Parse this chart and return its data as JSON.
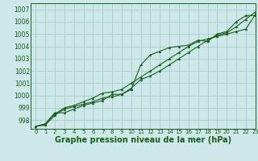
{
  "title": "Graphe pression niveau de la mer (hPa)",
  "bg_color": "#cce8e8",
  "grid_color": "#aacccc",
  "line_color": "#1a5e1a",
  "xlim": [
    -0.5,
    23
  ],
  "ylim": [
    997.3,
    1007.5
  ],
  "yticks": [
    998,
    999,
    1000,
    1001,
    1002,
    1003,
    1004,
    1005,
    1006,
    1007
  ],
  "xticks": [
    0,
    1,
    2,
    3,
    4,
    5,
    6,
    7,
    8,
    9,
    10,
    11,
    12,
    13,
    14,
    15,
    16,
    17,
    18,
    19,
    20,
    21,
    22,
    23
  ],
  "series": [
    [
      997.5,
      997.7,
      998.6,
      998.6,
      998.9,
      999.2,
      999.4,
      999.6,
      1000.1,
      1000.1,
      1000.5,
      1002.5,
      1003.3,
      1003.6,
      1003.9,
      1004.0,
      1004.1,
      1004.5,
      1004.4,
      1005.0,
      1005.2,
      1006.0,
      1006.5,
      1006.5
    ],
    [
      997.5,
      997.7,
      998.5,
      999.0,
      999.2,
      999.5,
      999.8,
      1000.2,
      1000.3,
      1000.5,
      1001.0,
      1001.5,
      1002.0,
      1002.5,
      1003.0,
      1003.5,
      1004.0,
      1004.4,
      1004.6,
      1004.8,
      1005.0,
      1005.2,
      1005.4,
      1006.6
    ],
    [
      997.5,
      997.6,
      998.4,
      998.9,
      999.1,
      999.3,
      999.5,
      999.8,
      999.9,
      1000.1,
      1000.6,
      1001.3,
      1001.6,
      1002.0,
      1002.5,
      1003.0,
      1003.5,
      1004.0,
      1004.5,
      1004.9,
      1005.1,
      1005.6,
      1006.2,
      1006.8
    ]
  ],
  "ylabel_fontsize": 5.5,
  "xlabel_fontsize": 5.5,
  "title_fontsize": 7.0,
  "linewidth": 0.8,
  "markersize": 2.0
}
